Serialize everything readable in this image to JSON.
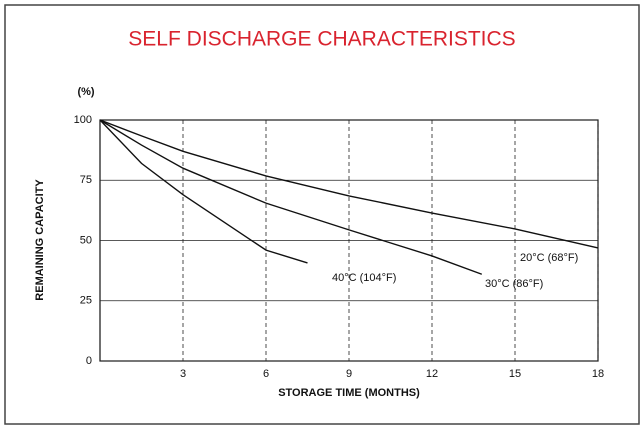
{
  "chart_data": {
    "type": "line",
    "title": "SELF DISCHARGE CHARACTERISTICS",
    "unit_label": "(%)",
    "xlabel": "STORAGE TIME (MONTHS)",
    "ylabel": "REMAINING CAPACITY",
    "xlim": [
      0,
      18
    ],
    "xticks": [
      3,
      6,
      9,
      12,
      15,
      18
    ],
    "ylim": [
      0,
      100
    ],
    "yticks": [
      0,
      25,
      50,
      75,
      100
    ],
    "grid": true,
    "series": [
      {
        "name": "20°C (68°F)",
        "color": "#111111",
        "x": [
          0,
          1.5,
          3,
          6,
          9,
          12,
          15,
          18
        ],
        "values": [
          100,
          93.4,
          87,
          76.8,
          68.5,
          61.4,
          54.8,
          46.9
        ]
      },
      {
        "name": "30°C (86°F)",
        "color": "#111111",
        "x": [
          0,
          1.5,
          3,
          6,
          9,
          12,
          13.8
        ],
        "values": [
          100,
          89.6,
          80,
          65.5,
          54.4,
          43.6,
          36
        ]
      },
      {
        "name": "40°C (104°F)",
        "color": "#111111",
        "x": [
          0,
          1.5,
          3,
          6,
          7.5
        ],
        "values": [
          100,
          82,
          69,
          46,
          40.7
        ]
      }
    ]
  }
}
